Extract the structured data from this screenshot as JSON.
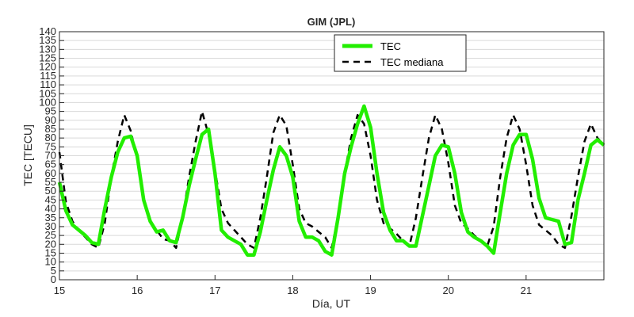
{
  "chart_data": {
    "type": "line",
    "title": "GIM (JPL)",
    "xlabel": "Día, UT",
    "ylabel": "TEC [TECU]",
    "xlim": [
      15,
      22
    ],
    "ylim": [
      0,
      140
    ],
    "xticks": [
      "15",
      "16",
      "17",
      "18",
      "19",
      "20",
      "21"
    ],
    "yticks": [
      "0",
      "5",
      "10",
      "15",
      "20",
      "25",
      "30",
      "35",
      "40",
      "45",
      "50",
      "55",
      "60",
      "65",
      "70",
      "75",
      "80",
      "85",
      "90",
      "95",
      "100",
      "105",
      "110",
      "115",
      "120",
      "125",
      "130",
      "135",
      "140"
    ],
    "grid": "horizontal",
    "legend_position": "top-center",
    "series": [
      {
        "name": "TEC",
        "color": "#22ee00",
        "style": "solid",
        "x": [
          15.0,
          15.083,
          15.167,
          15.25,
          15.333,
          15.417,
          15.5,
          15.583,
          15.667,
          15.75,
          15.833,
          15.917,
          16.0,
          16.083,
          16.167,
          16.25,
          16.333,
          16.417,
          16.5,
          16.583,
          16.667,
          16.75,
          16.833,
          16.917,
          17.0,
          17.083,
          17.167,
          17.25,
          17.333,
          17.417,
          17.5,
          17.583,
          17.667,
          17.75,
          17.833,
          17.917,
          18.0,
          18.083,
          18.167,
          18.25,
          18.333,
          18.417,
          18.5,
          18.583,
          18.667,
          18.75,
          18.833,
          18.917,
          19.0,
          19.083,
          19.167,
          19.25,
          19.333,
          19.417,
          19.5,
          19.583,
          19.667,
          19.75,
          19.833,
          19.917,
          20.0,
          20.083,
          20.167,
          20.25,
          20.333,
          20.417,
          20.5,
          20.583,
          20.667,
          20.75,
          20.833,
          20.917,
          21.0,
          21.083,
          21.167,
          21.25,
          21.333,
          21.417,
          21.5,
          21.583,
          21.667,
          21.75,
          21.833,
          21.917,
          22.0
        ],
        "values": [
          55,
          39,
          31,
          28,
          25,
          21,
          20,
          40,
          58,
          72,
          80,
          81,
          70,
          45,
          33,
          27,
          28,
          22,
          21,
          35,
          53,
          68,
          82,
          85,
          60,
          28,
          24,
          22,
          20,
          14,
          14,
          27,
          45,
          62,
          75,
          70,
          58,
          33,
          24,
          24,
          22,
          16,
          14,
          35,
          60,
          75,
          88,
          98,
          86,
          60,
          38,
          28,
          22,
          22,
          19,
          19,
          36,
          53,
          70,
          76,
          75,
          60,
          38,
          27,
          24,
          22,
          19,
          15,
          38,
          60,
          76,
          82,
          82,
          68,
          46,
          35,
          34,
          33,
          20,
          21,
          45,
          60,
          76,
          79,
          76
        ]
      },
      {
        "name": "TEC mediana",
        "color": "#000000",
        "style": "dashed",
        "x": [
          15.0,
          15.083,
          15.167,
          15.25,
          15.333,
          15.417,
          15.5,
          15.583,
          15.667,
          15.75,
          15.833,
          15.917,
          16.0,
          16.083,
          16.167,
          16.25,
          16.333,
          16.417,
          16.5,
          16.583,
          16.667,
          16.75,
          16.833,
          16.917,
          17.0,
          17.083,
          17.167,
          17.25,
          17.333,
          17.417,
          17.5,
          17.583,
          17.667,
          17.75,
          17.833,
          17.917,
          18.0,
          18.083,
          18.167,
          18.25,
          18.333,
          18.417,
          18.5,
          18.583,
          18.667,
          18.75,
          18.833,
          18.917,
          19.0,
          19.083,
          19.167,
          19.25,
          19.333,
          19.417,
          19.5,
          19.583,
          19.667,
          19.75,
          19.833,
          19.917,
          20.0,
          20.083,
          20.167,
          20.25,
          20.333,
          20.417,
          20.5,
          20.583,
          20.667,
          20.75,
          20.833,
          20.917,
          21.0,
          21.083,
          21.167,
          21.25,
          21.333,
          21.417,
          21.5,
          21.583,
          21.667,
          21.75,
          21.833,
          21.917,
          22.0
        ],
        "values": [
          72,
          44,
          33,
          28,
          24,
          20,
          18,
          32,
          58,
          78,
          93,
          84,
          68,
          45,
          33,
          28,
          23,
          22,
          18,
          35,
          58,
          78,
          95,
          82,
          62,
          40,
          32,
          28,
          24,
          20,
          18,
          35,
          58,
          83,
          93,
          87,
          65,
          40,
          32,
          30,
          27,
          24,
          18,
          35,
          60,
          80,
          93,
          88,
          70,
          45,
          32,
          29,
          26,
          22,
          19,
          35,
          58,
          80,
          93,
          85,
          66,
          42,
          32,
          29,
          25,
          22,
          19,
          30,
          58,
          80,
          93,
          85,
          65,
          42,
          31,
          28,
          25,
          20,
          18,
          36,
          58,
          78,
          88,
          80,
          76
        ]
      }
    ]
  }
}
